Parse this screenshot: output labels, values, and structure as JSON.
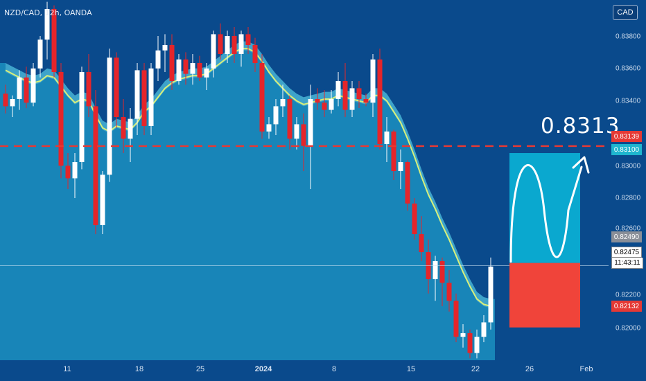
{
  "header": {
    "symbol": "NZD/CAD, 12h, OANDA",
    "currency": "CAD"
  },
  "annotation": {
    "target_text": "0.8313"
  },
  "price_axis": {
    "labels": [
      "0.83800",
      "0.83600",
      "0.83400",
      "0.83000",
      "0.82800",
      "0.82600",
      "0.82200",
      "0.82000"
    ],
    "tags": {
      "resistance": "0.83139",
      "target": "0.83100",
      "entry": "0.82490",
      "current": "0.82475",
      "stop": "0.82132"
    },
    "countdown": "11:43:11"
  },
  "time_axis": {
    "labels": [
      "11",
      "18",
      "25",
      "2024",
      "8",
      "15",
      "22",
      "26",
      "Feb"
    ]
  },
  "colors": {
    "background": "#0a4a8c",
    "area_fill": "#1b8fc0",
    "bull_candle": "#ffffff",
    "bear_candle": "#e5252a",
    "ma_line": "#d8f07a",
    "resistance_line": "#e53935",
    "target_box": "#0aa8cf",
    "stop_box": "#f0443a"
  },
  "chart_data": {
    "type": "candlestick",
    "symbol": "NZD/CAD",
    "timeframe": "12h",
    "broker": "OANDA",
    "ylim": [
      0.8195,
      0.8395
    ],
    "y_ticks": [
      0.838,
      0.836,
      0.834,
      0.83,
      0.828,
      0.826,
      0.822,
      0.82
    ],
    "resistance_level": 0.83139,
    "projection": {
      "entry": 0.8249,
      "target": 0.831,
      "stop": 0.82132,
      "target_label": 0.8313
    },
    "last_price": 0.82475,
    "candles": [
      [
        0.8343,
        0.8348,
        0.8332,
        0.8336
      ],
      [
        0.8336,
        0.8342,
        0.833,
        0.834
      ],
      [
        0.834,
        0.8356,
        0.8334,
        0.8352
      ],
      [
        0.8352,
        0.8358,
        0.8335,
        0.8338
      ],
      [
        0.8338,
        0.836,
        0.8336,
        0.8357
      ],
      [
        0.8357,
        0.8375,
        0.8352,
        0.8373
      ],
      [
        0.8373,
        0.8394,
        0.8362,
        0.839
      ],
      [
        0.839,
        0.8392,
        0.8352,
        0.8355
      ],
      [
        0.8355,
        0.836,
        0.8296,
        0.8303
      ],
      [
        0.8303,
        0.831,
        0.829,
        0.8296
      ],
      [
        0.8296,
        0.831,
        0.8285,
        0.8305
      ],
      [
        0.8305,
        0.8358,
        0.8301,
        0.8355
      ],
      [
        0.8355,
        0.8365,
        0.833,
        0.8336
      ],
      [
        0.8336,
        0.8345,
        0.8265,
        0.827
      ],
      [
        0.827,
        0.83,
        0.8265,
        0.8298
      ],
      [
        0.8298,
        0.8368,
        0.8294,
        0.8363
      ],
      [
        0.8363,
        0.8366,
        0.8324,
        0.833
      ],
      [
        0.833,
        0.834,
        0.831,
        0.8318
      ],
      [
        0.8318,
        0.8335,
        0.8305,
        0.8329
      ],
      [
        0.8329,
        0.836,
        0.832,
        0.8356
      ],
      [
        0.8356,
        0.836,
        0.832,
        0.8325
      ],
      [
        0.8325,
        0.836,
        0.832,
        0.8357
      ],
      [
        0.8357,
        0.8375,
        0.835,
        0.8367
      ],
      [
        0.8367,
        0.8376,
        0.8355,
        0.837
      ],
      [
        0.837,
        0.8376,
        0.8345,
        0.835
      ],
      [
        0.835,
        0.8365,
        0.8348,
        0.8362
      ],
      [
        0.8362,
        0.8366,
        0.8348,
        0.8354
      ],
      [
        0.8354,
        0.8365,
        0.8348,
        0.836
      ],
      [
        0.836,
        0.8364,
        0.835,
        0.8352
      ],
      [
        0.8352,
        0.836,
        0.8345,
        0.8357
      ],
      [
        0.8357,
        0.8378,
        0.8352,
        0.8376
      ],
      [
        0.8376,
        0.8382,
        0.8362,
        0.8365
      ],
      [
        0.8365,
        0.8378,
        0.836,
        0.8375
      ],
      [
        0.8375,
        0.838,
        0.836,
        0.8365
      ],
      [
        0.8365,
        0.8378,
        0.8358,
        0.8376
      ],
      [
        0.8376,
        0.838,
        0.8365,
        0.837
      ],
      [
        0.837,
        0.8374,
        0.8355,
        0.836
      ],
      [
        0.836,
        0.8365,
        0.8318,
        0.8322
      ],
      [
        0.8322,
        0.833,
        0.8318,
        0.8326
      ],
      [
        0.8326,
        0.834,
        0.832,
        0.8336
      ],
      [
        0.8336,
        0.8348,
        0.833,
        0.834
      ],
      [
        0.834,
        0.8342,
        0.8312,
        0.8318
      ],
      [
        0.8318,
        0.833,
        0.8312,
        0.8326
      ],
      [
        0.8326,
        0.8332,
        0.83,
        0.8314
      ],
      [
        0.8314,
        0.8348,
        0.829,
        0.834
      ],
      [
        0.834,
        0.8346,
        0.8334,
        0.8338
      ],
      [
        0.8338,
        0.8345,
        0.833,
        0.8334
      ],
      [
        0.8334,
        0.8345,
        0.8332,
        0.834
      ],
      [
        0.834,
        0.8355,
        0.8336,
        0.835
      ],
      [
        0.835,
        0.836,
        0.833,
        0.8334
      ],
      [
        0.8334,
        0.835,
        0.833,
        0.8346
      ],
      [
        0.8346,
        0.835,
        0.8335,
        0.834
      ],
      [
        0.834,
        0.8343,
        0.8336,
        0.8338
      ],
      [
        0.8338,
        0.8365,
        0.833,
        0.8362
      ],
      [
        0.8362,
        0.8368,
        0.8312,
        0.8315
      ],
      [
        0.8315,
        0.833,
        0.8305,
        0.8322
      ],
      [
        0.8322,
        0.8323,
        0.8295,
        0.83
      ],
      [
        0.83,
        0.8312,
        0.829,
        0.8305
      ],
      [
        0.8305,
        0.8306,
        0.8278,
        0.8282
      ],
      [
        0.8282,
        0.8285,
        0.8262,
        0.8265
      ],
      [
        0.8265,
        0.8275,
        0.825,
        0.8255
      ],
      [
        0.8255,
        0.8262,
        0.8232,
        0.824
      ],
      [
        0.824,
        0.8253,
        0.8228,
        0.825
      ],
      [
        0.825,
        0.8252,
        0.8225,
        0.8238
      ],
      [
        0.8238,
        0.8245,
        0.8222,
        0.8228
      ],
      [
        0.8228,
        0.8232,
        0.8205,
        0.8208
      ],
      [
        0.8208,
        0.8215,
        0.8202,
        0.821
      ],
      [
        0.821,
        0.8212,
        0.8196,
        0.8199
      ],
      [
        0.8199,
        0.8212,
        0.8196,
        0.8208
      ],
      [
        0.8208,
        0.822,
        0.8205,
        0.8216
      ],
      [
        0.8216,
        0.8252,
        0.8212,
        0.8247
      ]
    ],
    "ma": [
      0.8356,
      0.8354,
      0.8352,
      0.835,
      0.8349,
      0.835,
      0.8353,
      0.8352,
      0.8347,
      0.8342,
      0.8338,
      0.834,
      0.8339,
      0.8331,
      0.8324,
      0.8322,
      0.8325,
      0.8324,
      0.8323,
      0.8327,
      0.8333,
      0.8336,
      0.8341,
      0.8346,
      0.8349,
      0.8351,
      0.8352,
      0.8353,
      0.8353,
      0.8354,
      0.8357,
      0.836,
      0.8363,
      0.8366,
      0.8368,
      0.8368,
      0.8366,
      0.8361,
      0.8355,
      0.835,
      0.8346,
      0.8342,
      0.8339,
      0.8337,
      0.8338,
      0.8339,
      0.834,
      0.834,
      0.8342,
      0.8341,
      0.834,
      0.8339,
      0.8338,
      0.8342,
      0.8342,
      0.8339,
      0.8333,
      0.8327,
      0.8318,
      0.8308,
      0.8297,
      0.8287,
      0.8279,
      0.827,
      0.8262,
      0.8253,
      0.8244,
      0.8236,
      0.8229,
      0.8226,
      0.8225
    ]
  }
}
